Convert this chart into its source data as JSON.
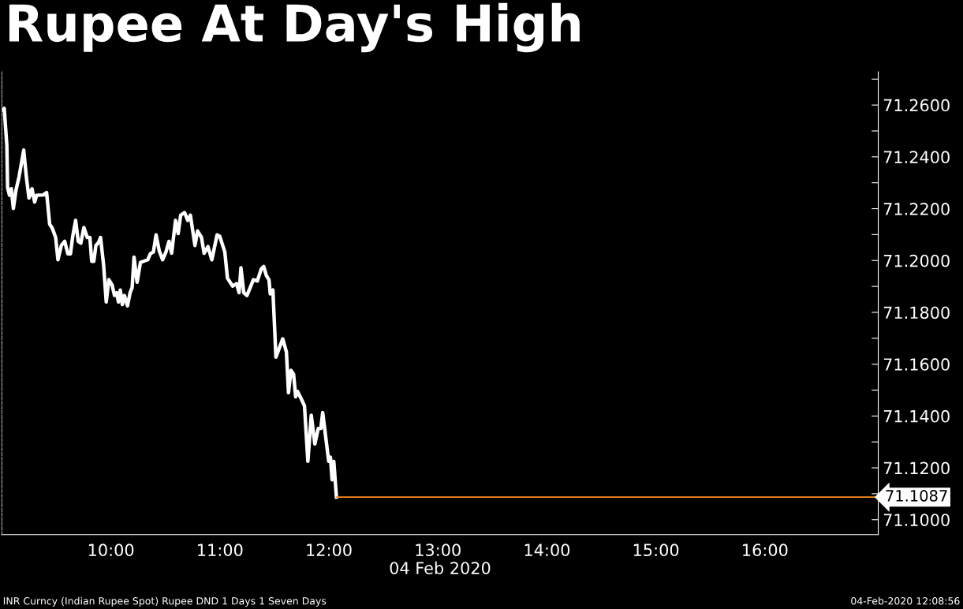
{
  "chart_data": {
    "type": "line",
    "title": "Rupee At Day's High",
    "xlabel": "04 Feb 2020",
    "annotations": [
      "INR Curncy (Indian Rupee Spot) Rupee DND 1 Days 1 Seven Days",
      "04-Feb-2020 12:08:56"
    ],
    "x": [
      9.01,
      9.021,
      9.045,
      9.052,
      9.069,
      9.086,
      9.105,
      9.129,
      9.157,
      9.2,
      9.224,
      9.248,
      9.276,
      9.3,
      9.319,
      9.379,
      9.41,
      9.438,
      9.462,
      9.493,
      9.514,
      9.545,
      9.576,
      9.605,
      9.629,
      9.648,
      9.676,
      9.7,
      9.724,
      9.752,
      9.783,
      9.807,
      9.824,
      9.843,
      9.862,
      9.886,
      9.905,
      9.933,
      9.957,
      9.981,
      10.01,
      10.033,
      10.052,
      10.069,
      10.086,
      10.105,
      10.124,
      10.152,
      10.176,
      10.195,
      10.212,
      10.24,
      10.271,
      10.3,
      10.338,
      10.362,
      10.39,
      10.414,
      10.443,
      10.474,
      10.505,
      10.533,
      10.557,
      10.593,
      10.617,
      10.64,
      10.676,
      10.705,
      10.729,
      10.771,
      10.795,
      10.831,
      10.855,
      10.89,
      10.926,
      10.974,
      10.998,
      11.045,
      11.069,
      11.117,
      11.152,
      11.176,
      11.193,
      11.219,
      11.248,
      11.307,
      11.343,
      11.379,
      11.402,
      11.426,
      11.45,
      11.462,
      11.486,
      11.514,
      11.576,
      11.61,
      11.629,
      11.652,
      11.676,
      11.695,
      11.712,
      11.743,
      11.776,
      11.807,
      11.838,
      11.871,
      11.902,
      11.926,
      11.943,
      11.998,
      12.014,
      12.029,
      12.045,
      12.069
    ],
    "series": [
      {
        "color": "#ffffff",
        "values": [
          71.2582,
          71.2587,
          71.2445,
          71.2282,
          71.2252,
          71.2277,
          71.2201,
          71.2272,
          71.2323,
          71.2426,
          71.2323,
          71.2241,
          71.2277,
          71.2226,
          71.2252,
          71.2253,
          71.2262,
          71.214,
          71.2125,
          71.2089,
          71.2003,
          71.2058,
          71.2074,
          71.2026,
          71.2026,
          71.2089,
          71.2155,
          71.2074,
          71.2067,
          71.2127,
          71.2089,
          71.2089,
          71.1997,
          71.1997,
          71.2058,
          71.2069,
          71.2089,
          71.1982,
          71.184,
          71.1926,
          71.1906,
          71.1865,
          71.1876,
          71.184,
          71.1886,
          71.183,
          71.1865,
          71.1825,
          71.1876,
          71.1896,
          71.2013,
          71.1916,
          71.1993,
          71.1997,
          71.2003,
          71.2026,
          71.2033,
          71.2099,
          71.2038,
          71.2003,
          71.2033,
          71.2074,
          71.2028,
          71.2155,
          71.2104,
          71.2175,
          71.2185,
          71.2155,
          71.2175,
          71.2058,
          71.2114,
          71.2089,
          71.2028,
          71.2054,
          71.2003,
          71.2099,
          71.2094,
          71.2033,
          71.1932,
          71.1901,
          71.1911,
          71.1876,
          71.1972,
          71.1876,
          71.1865,
          71.1926,
          71.1921,
          71.1967,
          71.1977,
          71.1942,
          71.1926,
          71.1871,
          71.1886,
          71.1627,
          71.1698,
          71.1647,
          71.149,
          71.1576,
          71.1561,
          71.1474,
          71.1495,
          71.1469,
          71.1439,
          71.1225,
          71.1403,
          71.1292,
          71.1352,
          71.1352,
          71.1413,
          71.1225,
          71.1241,
          71.1154,
          71.1225,
          71.1087
        ]
      }
    ],
    "xlim": [
      9.0,
      17.04
    ],
    "ylim": [
      71.0942,
      71.2728
    ],
    "xticks": [
      {
        "value": 10,
        "label": "10:00"
      },
      {
        "value": 11,
        "label": "11:00"
      },
      {
        "value": 12,
        "label": "12:00"
      },
      {
        "value": 13,
        "label": "13:00"
      },
      {
        "value": 14,
        "label": "14:00"
      },
      {
        "value": 15,
        "label": "15:00"
      },
      {
        "value": 16,
        "label": "16:00"
      }
    ],
    "yticks": [
      {
        "value": 71.1,
        "label": "71.1000"
      },
      {
        "value": 71.11,
        "label": null
      },
      {
        "value": 71.12,
        "label": "71.1200"
      },
      {
        "value": 71.13,
        "label": null
      },
      {
        "value": 71.14,
        "label": "71.1400"
      },
      {
        "value": 71.15,
        "label": null
      },
      {
        "value": 71.16,
        "label": "71.1600"
      },
      {
        "value": 71.17,
        "label": null
      },
      {
        "value": 71.18,
        "label": "71.1800"
      },
      {
        "value": 71.19,
        "label": null
      },
      {
        "value": 71.2,
        "label": "71.2000"
      },
      {
        "value": 71.21,
        "label": null
      },
      {
        "value": 71.22,
        "label": "71.2200"
      },
      {
        "value": 71.23,
        "label": null
      },
      {
        "value": 71.24,
        "label": "71.2400"
      },
      {
        "value": 71.25,
        "label": null
      },
      {
        "value": 71.26,
        "label": "71.2600"
      },
      {
        "value": 71.27,
        "label": null
      }
    ],
    "ref_lines": [
      {
        "axis": "y",
        "value": 71.1087,
        "label": "71.1087",
        "color": "#ff8c1a"
      }
    ],
    "grid": false,
    "legend": false,
    "marker": "none",
    "line_style": "solid"
  }
}
